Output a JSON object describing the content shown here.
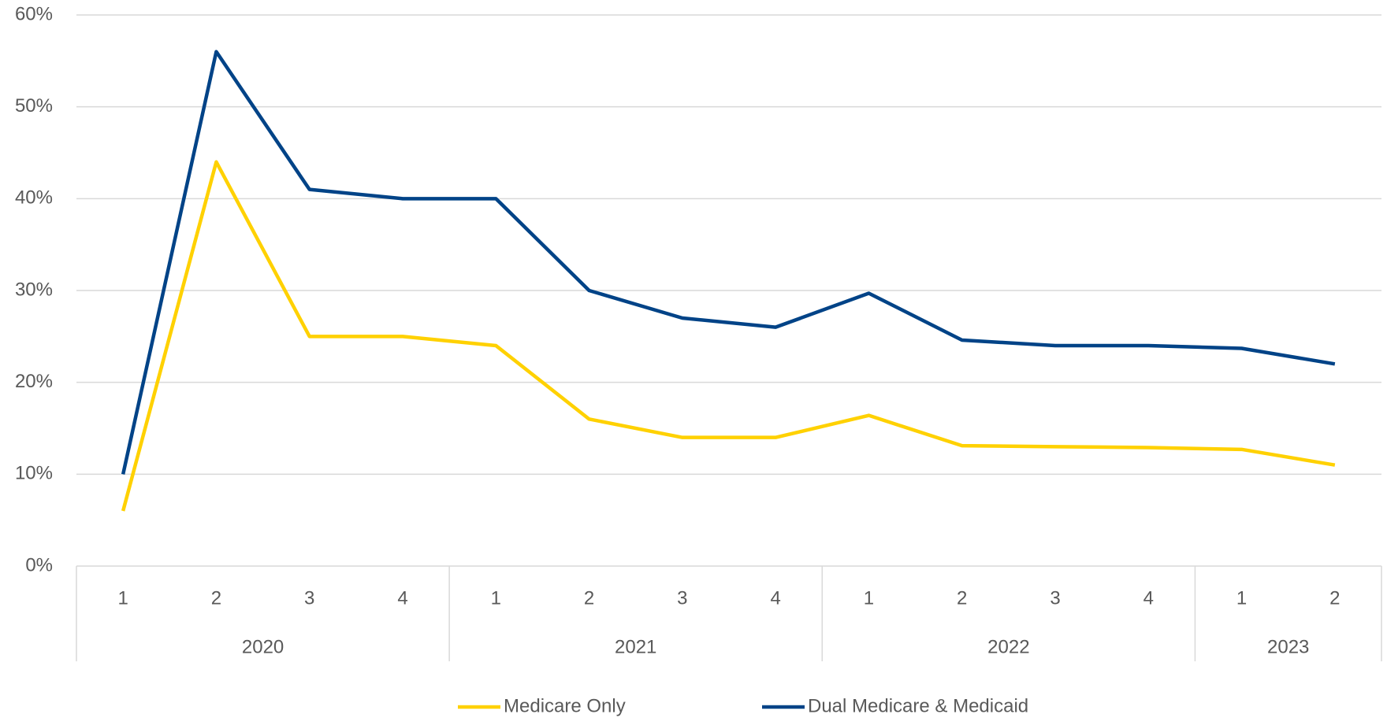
{
  "chart_data": {
    "type": "line",
    "categories": [
      "1",
      "2",
      "3",
      "4",
      "1",
      "2",
      "3",
      "4",
      "1",
      "2",
      "3",
      "4",
      "1",
      "2"
    ],
    "category_groups": [
      {
        "label": "2020",
        "span": 4
      },
      {
        "label": "2021",
        "span": 4
      },
      {
        "label": "2022",
        "span": 4
      },
      {
        "label": "2023",
        "span": 2
      }
    ],
    "series": [
      {
        "name": "Medicare Only",
        "color": "#ffd100",
        "values": [
          6,
          44,
          25,
          25,
          24,
          16,
          14,
          14,
          16.4,
          13.1,
          13,
          12.9,
          12.7,
          11
        ]
      },
      {
        "name": "Dual Medicare & Medicaid",
        "color": "#004387",
        "values": [
          10,
          56,
          41,
          40,
          40,
          30,
          27,
          26,
          29.7,
          24.6,
          24,
          24,
          23.7,
          22
        ]
      }
    ],
    "ylim": [
      0,
      60
    ],
    "yticks": [
      {
        "value": 0,
        "label": "0%"
      },
      {
        "value": 10,
        "label": "10%"
      },
      {
        "value": 20,
        "label": "20%"
      },
      {
        "value": 30,
        "label": "30%"
      },
      {
        "value": 40,
        "label": "40%"
      },
      {
        "value": 50,
        "label": "50%"
      },
      {
        "value": 60,
        "label": "60%"
      }
    ],
    "grid": true,
    "legend": "bottom"
  }
}
